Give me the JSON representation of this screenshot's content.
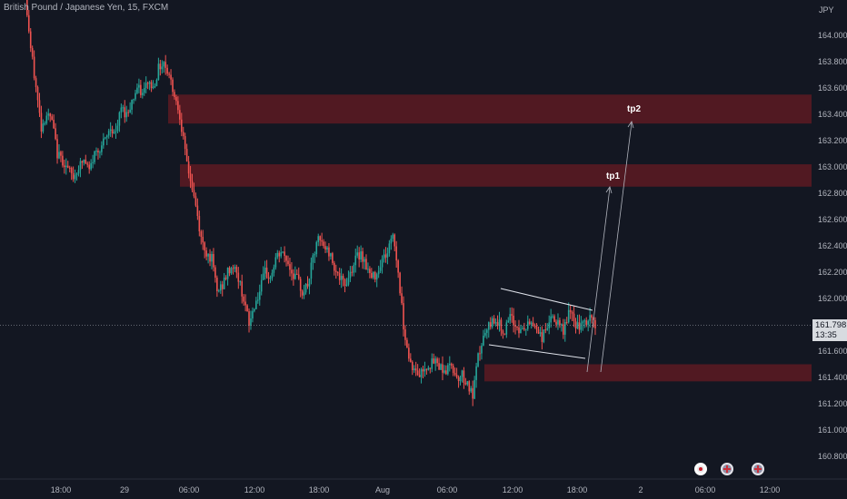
{
  "header": {
    "title": "British Pound / Japanese Yen, 15, FXCM"
  },
  "price_scale": {
    "currency": "JPY"
  },
  "current_price": {
    "value": "161.798",
    "countdown": "13:35"
  },
  "chart_data": {
    "type": "candlestick",
    "symbol": "GBPJPY",
    "title": "British Pound / Japanese Yen, 15, FXCM",
    "ylabel": "JPY",
    "ylim": [
      160.55,
      164.4
    ],
    "y_ticks": [
      "164.000",
      "163.800",
      "163.600",
      "163.400",
      "163.200",
      "163.000",
      "162.800",
      "162.600",
      "162.400",
      "162.200",
      "162.000",
      "161.800",
      "161.600",
      "161.400",
      "161.200",
      "161.000",
      "160.800"
    ],
    "x_ticks": [
      "18:00",
      "29",
      "06:00",
      "12:00",
      "18:00",
      "Aug",
      "06:00",
      "12:00",
      "18:00",
      "2",
      "06:00",
      "12:00"
    ],
    "last_price": 161.798,
    "colors": {
      "up": "#26a69a",
      "down": "#ef5350",
      "zone": "#5d1a22",
      "background": "#131722"
    },
    "price_path": [
      [
        0,
        164.55
      ],
      [
        1,
        164.3
      ],
      [
        2,
        163.9
      ],
      [
        3,
        163.6
      ],
      [
        4,
        163.3
      ],
      [
        5,
        163.4
      ],
      [
        6,
        163.35
      ],
      [
        7,
        163.1
      ],
      [
        8,
        163.05
      ],
      [
        9,
        162.98
      ],
      [
        10,
        162.92
      ],
      [
        11,
        163.0
      ],
      [
        12,
        163.05
      ],
      [
        13,
        162.97
      ],
      [
        14,
        163.1
      ],
      [
        15,
        163.15
      ],
      [
        16,
        163.2
      ],
      [
        17,
        163.3
      ],
      [
        18,
        163.25
      ],
      [
        19,
        163.45
      ],
      [
        20,
        163.4
      ],
      [
        21,
        163.5
      ],
      [
        22,
        163.6
      ],
      [
        23,
        163.55
      ],
      [
        24,
        163.65
      ],
      [
        25,
        163.6
      ],
      [
        26,
        163.75
      ],
      [
        27,
        163.8
      ],
      [
        28,
        163.7
      ],
      [
        29,
        163.55
      ],
      [
        30,
        163.4
      ],
      [
        31,
        163.1
      ],
      [
        32,
        162.9
      ],
      [
        33,
        162.7
      ],
      [
        34,
        162.45
      ],
      [
        35,
        162.35
      ],
      [
        36,
        162.3
      ],
      [
        37,
        162.05
      ],
      [
        38,
        162.1
      ],
      [
        39,
        162.2
      ],
      [
        40,
        162.25
      ],
      [
        41,
        162.15
      ],
      [
        42,
        162.0
      ],
      [
        43,
        161.8
      ],
      [
        44,
        161.95
      ],
      [
        45,
        162.05
      ],
      [
        46,
        162.2
      ],
      [
        47,
        162.15
      ],
      [
        48,
        162.3
      ],
      [
        49,
        162.35
      ],
      [
        50,
        162.3
      ],
      [
        51,
        162.2
      ],
      [
        52,
        162.15
      ],
      [
        53,
        162.05
      ],
      [
        54,
        162.1
      ],
      [
        55,
        162.3
      ],
      [
        56,
        162.45
      ],
      [
        57,
        162.4
      ],
      [
        58,
        162.35
      ],
      [
        59,
        162.25
      ],
      [
        60,
        162.15
      ],
      [
        61,
        162.1
      ],
      [
        62,
        162.2
      ],
      [
        63,
        162.3
      ],
      [
        64,
        162.35
      ],
      [
        65,
        162.25
      ],
      [
        66,
        162.15
      ],
      [
        67,
        162.2
      ],
      [
        68,
        162.3
      ],
      [
        69,
        162.35
      ],
      [
        70,
        162.5
      ],
      [
        71,
        162.2
      ],
      [
        72,
        161.8
      ],
      [
        73,
        161.55
      ],
      [
        74,
        161.45
      ],
      [
        75,
        161.42
      ],
      [
        76,
        161.48
      ],
      [
        77,
        161.5
      ],
      [
        78,
        161.52
      ],
      [
        79,
        161.48
      ],
      [
        80,
        161.45
      ],
      [
        81,
        161.5
      ],
      [
        82,
        161.4
      ],
      [
        83,
        161.42
      ],
      [
        84,
        161.35
      ],
      [
        85,
        161.25
      ],
      [
        86,
        161.55
      ],
      [
        87,
        161.7
      ],
      [
        88,
        161.78
      ],
      [
        89,
        161.85
      ],
      [
        90,
        161.8
      ],
      [
        91,
        161.75
      ],
      [
        92,
        161.85
      ],
      [
        93,
        161.8
      ],
      [
        94,
        161.75
      ],
      [
        95,
        161.78
      ],
      [
        96,
        161.82
      ],
      [
        97,
        161.78
      ],
      [
        98,
        161.7
      ],
      [
        99,
        161.8
      ],
      [
        100,
        161.85
      ],
      [
        101,
        161.8
      ],
      [
        102,
        161.75
      ],
      [
        103,
        161.9
      ],
      [
        104,
        161.82
      ],
      [
        105,
        161.78
      ],
      [
        106,
        161.8
      ],
      [
        107,
        161.85
      ],
      [
        108,
        161.8
      ]
    ],
    "zones": [
      {
        "y1": 163.55,
        "y2": 163.33
      },
      {
        "y1": 163.02,
        "y2": 162.85
      },
      {
        "y1": 161.5,
        "y2": 161.37
      }
    ],
    "annotations": [
      {
        "label": "tp1",
        "target": 162.85
      },
      {
        "label": "tp2",
        "target": 163.38
      }
    ]
  }
}
